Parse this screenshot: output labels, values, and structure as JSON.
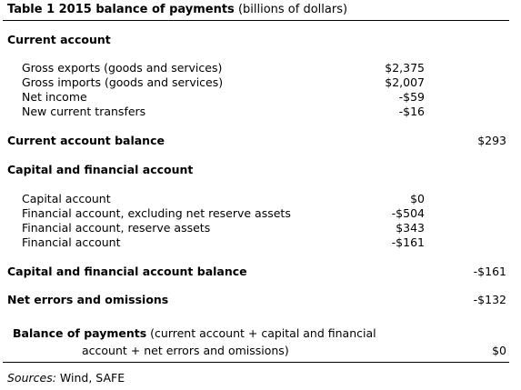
{
  "table": {
    "title_bold": "Table 1 2015 balance of payments",
    "title_rest": "(billions of dollars)",
    "current_account": {
      "heading": "Current account",
      "items": [
        {
          "label": "Gross exports (goods and services)",
          "value": "$2,375"
        },
        {
          "label": "Gross imports (goods and services)",
          "value": "$2,007"
        },
        {
          "label": "Net income",
          "value": "-$59"
        },
        {
          "label": "New current transfers",
          "value": "-$16"
        }
      ],
      "balance_label": "Current account balance",
      "balance_value": "$293"
    },
    "capital_financial": {
      "heading": "Capital and financial account",
      "items": [
        {
          "label": "Capital account",
          "value": "$0"
        },
        {
          "label": "Financial account, excluding net reserve assets",
          "value": "-$504"
        },
        {
          "label": "Financial account, reserve assets",
          "value": "$343"
        },
        {
          "label": "Financial account",
          "value": "-$161"
        }
      ],
      "balance_label": "Capital and financial account balance",
      "balance_value": "-$161"
    },
    "net_errors": {
      "label": "Net errors and omissions",
      "value": "-$132"
    },
    "bop": {
      "label_bold": "Balance of payments",
      "label_rest_line1": "(current account + capital and financial",
      "label_rest_line2": "account + net errors and omissions)",
      "value": "$0"
    },
    "sources": {
      "prefix": "Sources:",
      "text": "Wind, SAFE"
    }
  }
}
